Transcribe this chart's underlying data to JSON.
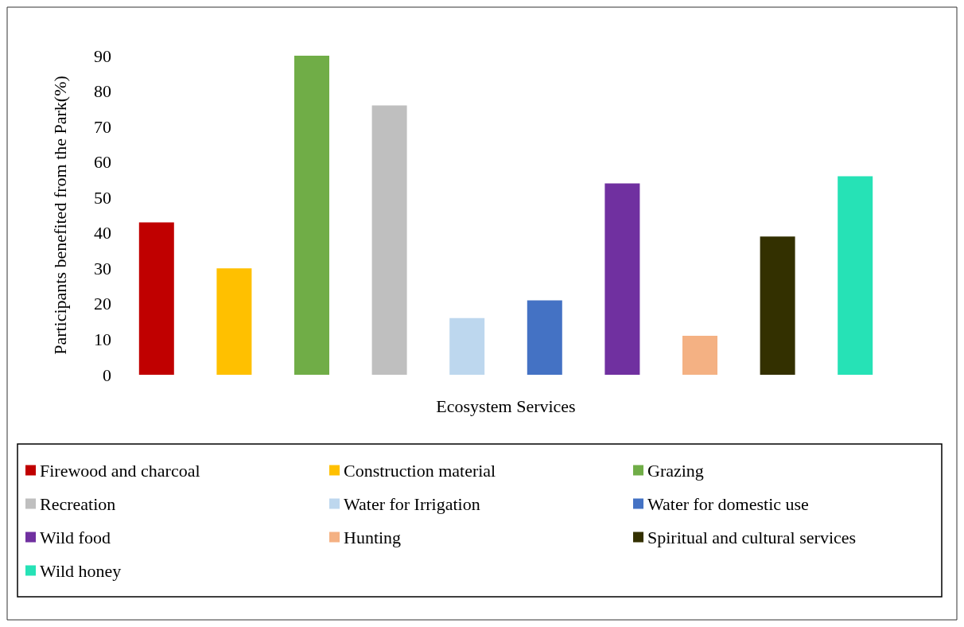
{
  "chart_data": {
    "type": "bar",
    "stacked": true,
    "xlabel": "Ecosystem Services",
    "ylabel": "Participants benefited from the Park(%)",
    "categories": [
      null,
      null,
      null,
      null,
      null,
      null,
      null,
      null,
      null,
      null
    ],
    "series": [
      {
        "name": "Firewood and charcoal",
        "color": "#c00000",
        "values": [
          43,
          null,
          null,
          null,
          null,
          null,
          null,
          null,
          null,
          null
        ]
      },
      {
        "name": "Construction material",
        "color": "#ffc000",
        "values": [
          null,
          30,
          null,
          null,
          null,
          null,
          null,
          null,
          null,
          null
        ]
      },
      {
        "name": "Grazing",
        "color": "#70ad47",
        "values": [
          null,
          null,
          90,
          null,
          null,
          null,
          null,
          null,
          null,
          null
        ]
      },
      {
        "name": "Recreation",
        "color": "#bfbfbf",
        "values": [
          null,
          null,
          null,
          76,
          null,
          null,
          null,
          null,
          null,
          null
        ]
      },
      {
        "name": "Water for Irrigation",
        "color": "#bdd7ee",
        "values": [
          null,
          null,
          null,
          null,
          16,
          null,
          null,
          null,
          null,
          null
        ]
      },
      {
        "name": "Water for domestic use",
        "color": "#4472c4",
        "values": [
          null,
          null,
          null,
          null,
          null,
          21,
          null,
          null,
          null,
          null
        ]
      },
      {
        "name": "Wild food",
        "color": "#7030a0",
        "values": [
          null,
          null,
          null,
          null,
          null,
          null,
          54,
          null,
          null,
          null
        ]
      },
      {
        "name": "Hunting",
        "color": "#f4b183",
        "values": [
          null,
          null,
          null,
          null,
          null,
          null,
          null,
          11,
          null,
          null
        ]
      },
      {
        "name": "Spiritual and cultural services",
        "color": "#333000",
        "values": [
          null,
          null,
          null,
          null,
          null,
          null,
          null,
          null,
          39,
          null
        ]
      },
      {
        "name": "Wild honey",
        "color": "#26e2b6",
        "values": [
          null,
          null,
          null,
          null,
          null,
          null,
          null,
          null,
          null,
          56
        ]
      }
    ],
    "ylim": [
      0,
      90
    ],
    "yticks": [
      0,
      10,
      20,
      30,
      40,
      50,
      60,
      70,
      80,
      90
    ],
    "grid": false,
    "legend": "bottom",
    "tick_labels": "y"
  }
}
